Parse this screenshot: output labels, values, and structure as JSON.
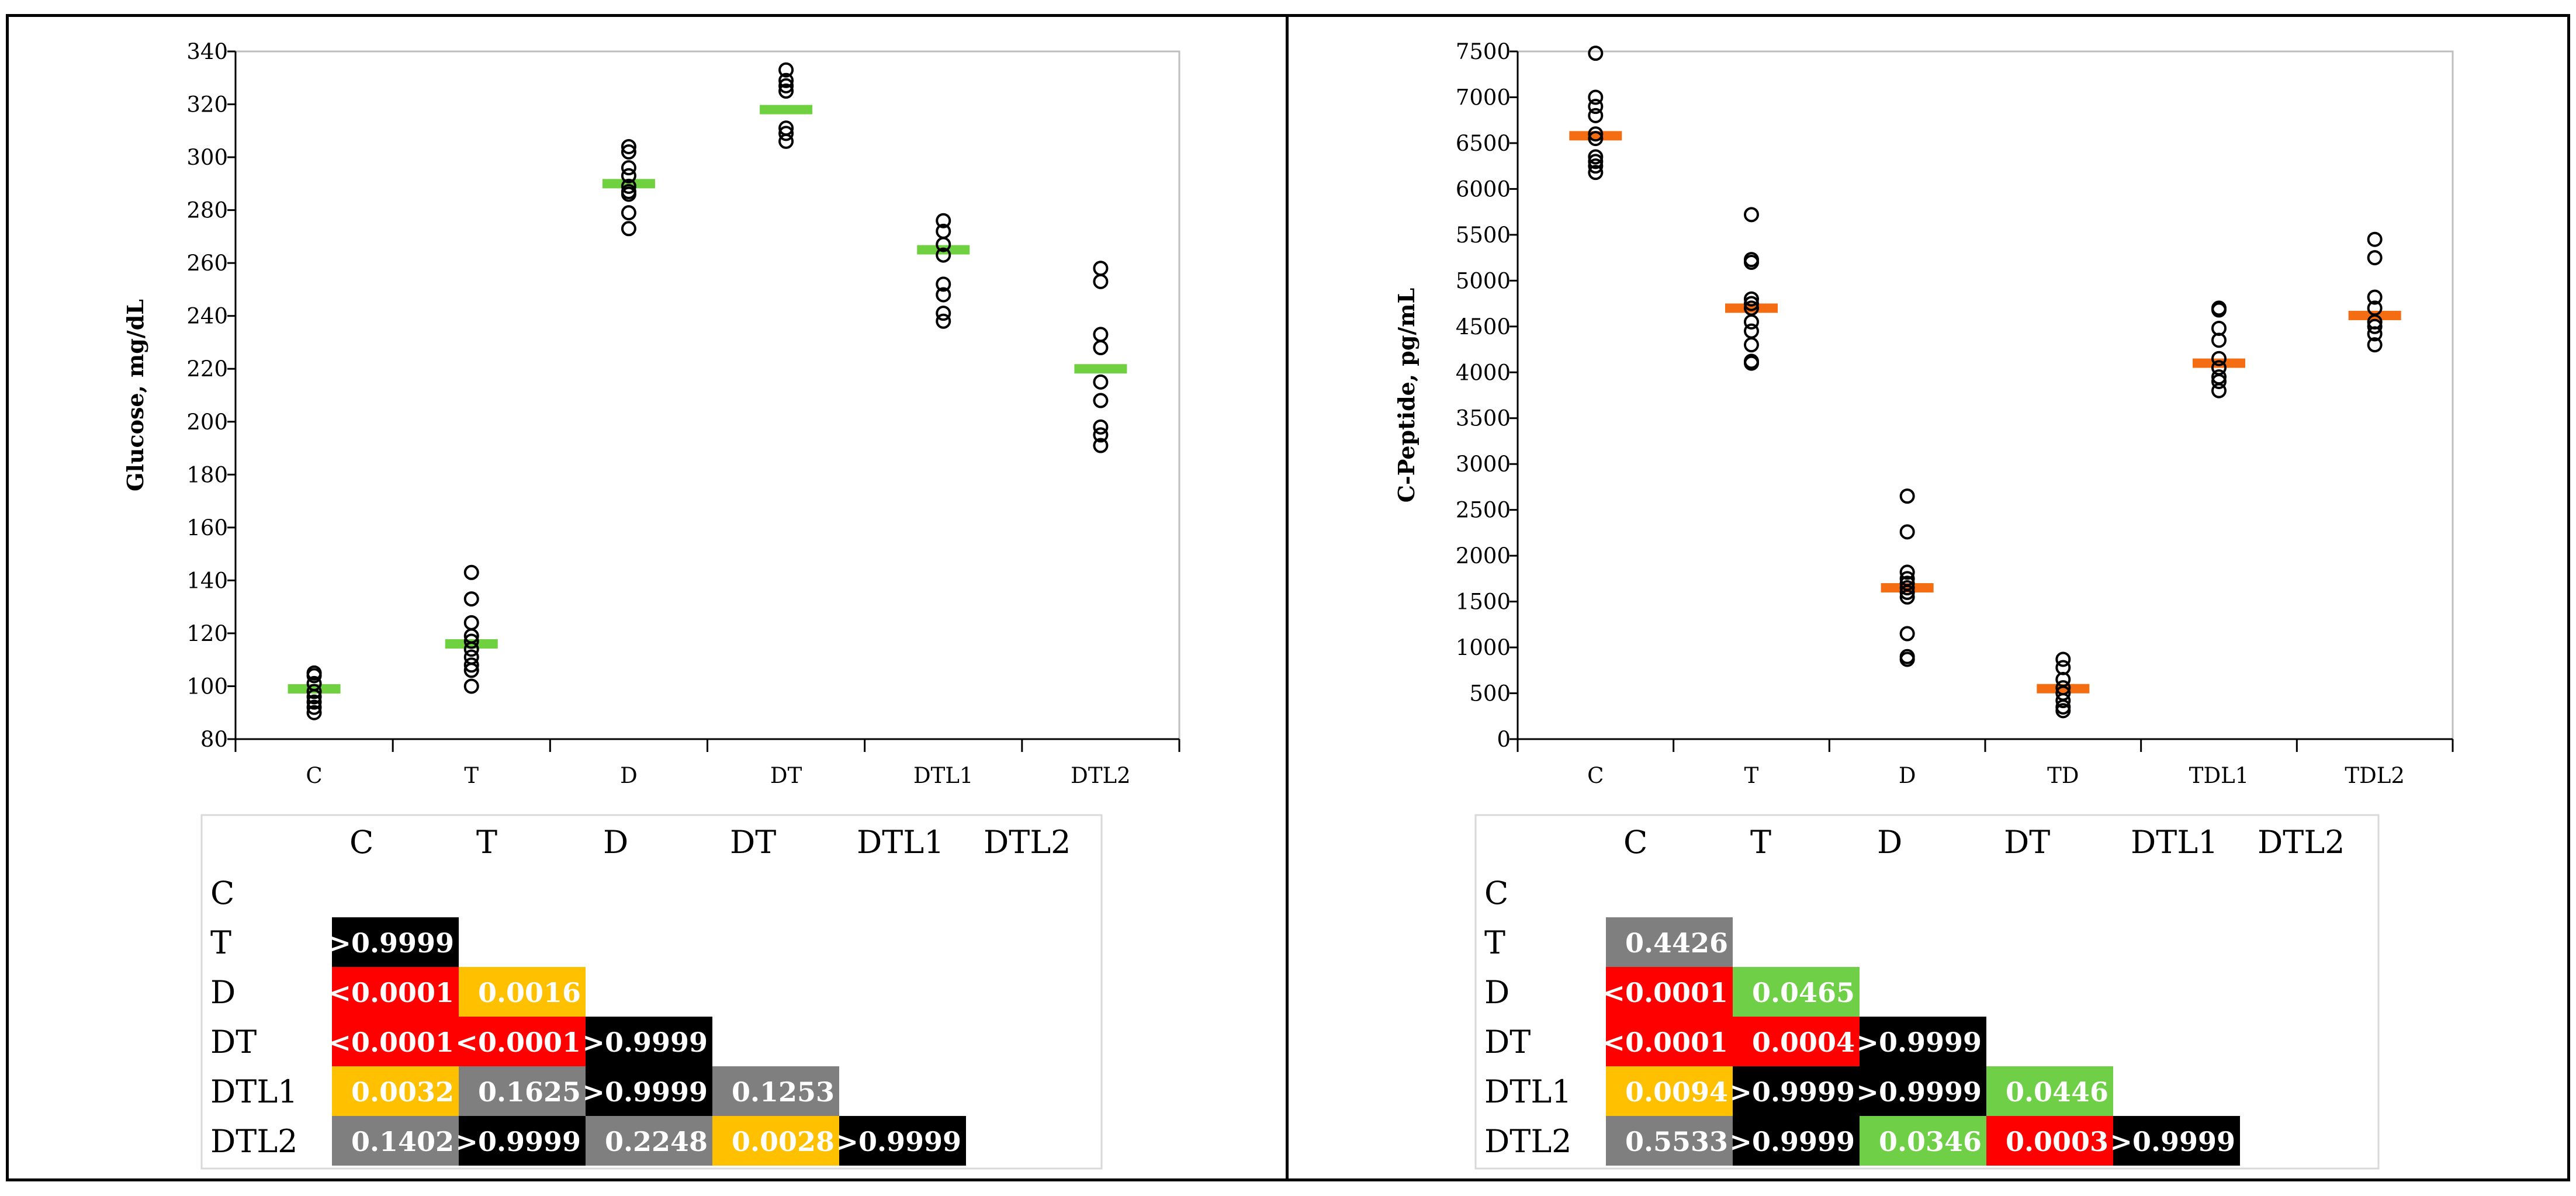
{
  "colors": {
    "black": "#000000",
    "red": "#ff0000",
    "orange": "#ffc000",
    "gray": "#7f7f7f",
    "green": "#6fcf46",
    "green_marker": "#6fd040",
    "orange_marker": "#f46d12"
  },
  "chart_data": [
    {
      "type": "scatter",
      "title": "",
      "xlabel": "",
      "ylabel": "Glucose, mg/dL",
      "ylim": [
        80,
        340
      ],
      "ytick_step": 20,
      "grid": false,
      "categories": [
        "C",
        "T",
        "D",
        "DT",
        "DTL1",
        "DTL2"
      ],
      "points": [
        [
          105,
          104,
          101,
          98,
          96,
          94,
          92,
          90
        ],
        [
          143,
          133,
          124,
          119,
          117,
          114,
          111,
          108,
          106,
          100
        ],
        [
          304,
          302,
          296,
          293,
          289,
          287,
          286,
          279,
          273
        ],
        [
          333,
          329,
          327,
          325,
          311,
          309,
          306
        ],
        [
          276,
          272,
          267,
          263,
          252,
          248,
          241,
          238
        ],
        [
          258,
          253,
          233,
          228,
          215,
          208,
          198,
          195,
          191
        ]
      ],
      "means": [
        99,
        116,
        290,
        318,
        265,
        220
      ],
      "mean_color_key": "green_marker"
    },
    {
      "type": "scatter",
      "title": "",
      "xlabel": "",
      "ylabel": "C-Peptide, pg/mL",
      "ylim": [
        0,
        7500
      ],
      "ytick_step": 500,
      "grid": false,
      "categories": [
        "C",
        "T",
        "D",
        "TD",
        "TDL1",
        "TDL2"
      ],
      "points": [
        [
          7480,
          7000,
          6900,
          6800,
          6600,
          6550,
          6350,
          6300,
          6250,
          6180
        ],
        [
          5720,
          5230,
          5200,
          4800,
          4750,
          4700,
          4550,
          4450,
          4300,
          4120,
          4100
        ],
        [
          2650,
          2260,
          1820,
          1750,
          1700,
          1650,
          1600,
          1550,
          1150,
          900,
          870
        ],
        [
          870,
          780,
          650,
          560,
          500,
          420,
          350,
          310
        ],
        [
          4700,
          4680,
          4480,
          4350,
          4150,
          4050,
          3950,
          3900,
          3800
        ],
        [
          5450,
          5250,
          4820,
          4700,
          4550,
          4500,
          4420,
          4300
        ]
      ],
      "means": [
        6580,
        4700,
        1650,
        550,
        4100,
        4620
      ],
      "mean_color_key": "orange_marker"
    },
    {
      "type": "table",
      "headers": [
        "C",
        "T",
        "D",
        "DT",
        "DTL1",
        "DTL2"
      ],
      "rows": [
        "C",
        "T",
        "D",
        "DT",
        "DTL1",
        "DTL2"
      ],
      "cells": [
        [],
        [
          {
            "v": ">0.9999",
            "c": "black"
          }
        ],
        [
          {
            "v": "<0.0001",
            "c": "red"
          },
          {
            "v": "0.0016",
            "c": "orange"
          }
        ],
        [
          {
            "v": "<0.0001",
            "c": "red"
          },
          {
            "v": "<0.0001",
            "c": "red"
          },
          {
            "v": ">0.9999",
            "c": "black"
          }
        ],
        [
          {
            "v": "0.0032",
            "c": "orange"
          },
          {
            "v": "0.1625",
            "c": "gray"
          },
          {
            "v": ">0.9999",
            "c": "black"
          },
          {
            "v": "0.1253",
            "c": "gray"
          }
        ],
        [
          {
            "v": "0.1402",
            "c": "gray"
          },
          {
            "v": ">0.9999",
            "c": "black"
          },
          {
            "v": "0.2248",
            "c": "gray"
          },
          {
            "v": "0.0028",
            "c": "orange"
          },
          {
            "v": ">0.9999",
            "c": "black"
          }
        ]
      ]
    },
    {
      "type": "table",
      "headers": [
        "C",
        "T",
        "D",
        "DT",
        "DTL1",
        "DTL2"
      ],
      "rows": [
        "C",
        "T",
        "D",
        "DT",
        "DTL1",
        "DTL2"
      ],
      "cells": [
        [],
        [
          {
            "v": "0.4426",
            "c": "gray"
          }
        ],
        [
          {
            "v": "<0.0001",
            "c": "red"
          },
          {
            "v": "0.0465",
            "c": "green"
          }
        ],
        [
          {
            "v": "<0.0001",
            "c": "red"
          },
          {
            "v": "0.0004",
            "c": "red"
          },
          {
            "v": ">0.9999",
            "c": "black"
          }
        ],
        [
          {
            "v": "0.0094",
            "c": "orange"
          },
          {
            "v": ">0.9999",
            "c": "black"
          },
          {
            "v": ">0.9999",
            "c": "black"
          },
          {
            "v": "0.0446",
            "c": "green"
          }
        ],
        [
          {
            "v": "0.5533",
            "c": "gray"
          },
          {
            "v": ">0.9999",
            "c": "black"
          },
          {
            "v": "0.0346",
            "c": "green"
          },
          {
            "v": "0.0003",
            "c": "red"
          },
          {
            "v": ">0.9999",
            "c": "black"
          }
        ]
      ]
    }
  ]
}
